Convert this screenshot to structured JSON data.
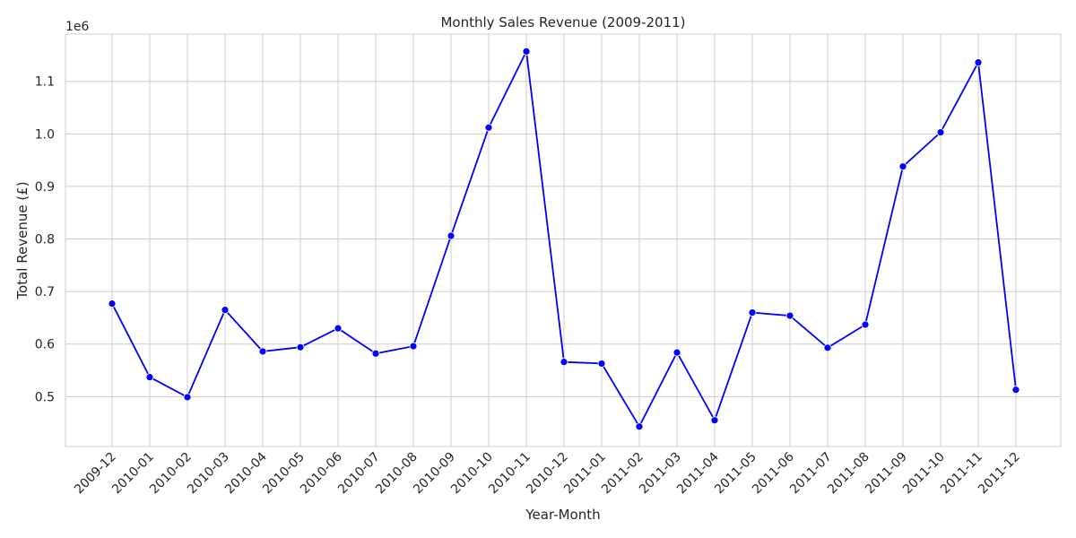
{
  "chart_data": {
    "type": "line",
    "title": "Monthly Sales Revenue (2009-2011)",
    "xlabel": "Year-Month",
    "ylabel": "Total Revenue (£)",
    "y_offset_label": "1e6",
    "y_ticks": [
      "0.5",
      "0.6",
      "0.7",
      "0.8",
      "0.9",
      "1.0",
      "1.1"
    ],
    "ylim": [
      0.405,
      1.19
    ],
    "grid": true,
    "line_color": "#0000ff",
    "grid_color": "#cccccc",
    "x": [
      "2009-12",
      "2010-01",
      "2010-02",
      "2010-03",
      "2010-04",
      "2010-05",
      "2010-06",
      "2010-07",
      "2010-08",
      "2010-09",
      "2010-10",
      "2010-11",
      "2010-12",
      "2011-01",
      "2011-02",
      "2011-03",
      "2011-04",
      "2011-05",
      "2011-06",
      "2011-07",
      "2011-08",
      "2011-09",
      "2011-10",
      "2011-11",
      "2011-12"
    ],
    "values": [
      0.677,
      0.537,
      0.499,
      0.665,
      0.586,
      0.594,
      0.63,
      0.582,
      0.596,
      0.806,
      1.012,
      1.157,
      0.566,
      0.563,
      0.443,
      0.584,
      0.455,
      0.66,
      0.654,
      0.593,
      0.637,
      0.938,
      1.003,
      1.136,
      0.513
    ]
  }
}
